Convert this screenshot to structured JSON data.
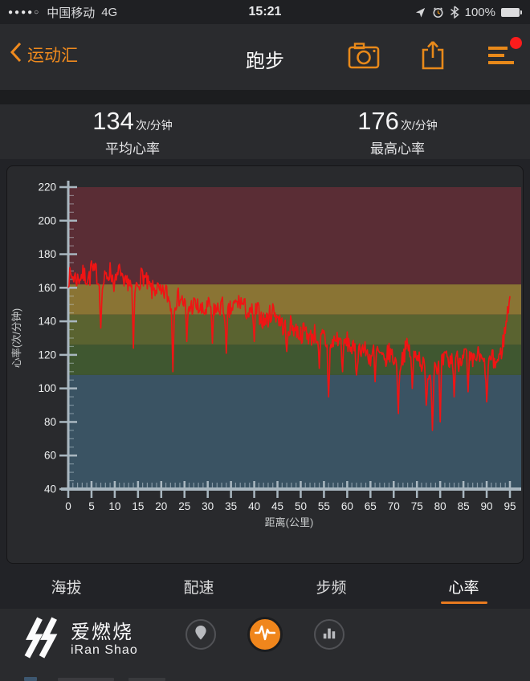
{
  "status_bar": {
    "signal_dots": "●●●●○",
    "carrier": "中国移动",
    "network": "4G",
    "time": "15:21",
    "battery_percent": "100%"
  },
  "nav": {
    "back_label": "运动汇",
    "title": "跑步"
  },
  "stats": {
    "avg": {
      "value": "134",
      "unit": "次/分钟",
      "label": "平均心率"
    },
    "max": {
      "value": "176",
      "unit": "次/分钟",
      "label": "最高心率"
    }
  },
  "chart_data": {
    "type": "line",
    "xlabel": "距离(公里)",
    "ylabel": "心率(次/分钟)",
    "xlim": [
      0,
      95
    ],
    "ylim": [
      40,
      220
    ],
    "x_ticks": [
      0,
      5,
      10,
      15,
      20,
      25,
      30,
      35,
      40,
      45,
      50,
      55,
      60,
      65,
      70,
      75,
      80,
      85,
      90,
      95
    ],
    "y_ticks": [
      40,
      60,
      80,
      100,
      120,
      140,
      160,
      180,
      200,
      220
    ],
    "line_color": "#f01414",
    "axis_color": "#a9b7c0",
    "tick_label_color": "#eceeef",
    "axis_title_color": "#c9cccd",
    "legend": "none",
    "grid": false,
    "zones": [
      {
        "from": 162,
        "to": 220,
        "color": "#5a2d35"
      },
      {
        "from": 144,
        "to": 162,
        "color": "#8a7434"
      },
      {
        "from": 126,
        "to": 144,
        "color": "#5a6330"
      },
      {
        "from": 108,
        "to": 126,
        "color": "#3f5730"
      },
      {
        "from": 40,
        "to": 108,
        "color": "#3a5363"
      }
    ],
    "series": [
      {
        "name": "心率",
        "x_step_km": 1,
        "values": [
          166,
          167,
          165,
          168,
          166,
          167,
          170,
          158,
          166,
          170,
          162,
          168,
          160,
          165,
          155,
          163,
          168,
          162,
          158,
          160,
          155,
          158,
          150,
          152,
          155,
          150,
          148,
          150,
          148,
          145,
          148,
          150,
          146,
          150,
          143,
          147,
          150,
          152,
          148,
          143,
          148,
          145,
          140,
          142,
          147,
          143,
          138,
          135,
          138,
          135,
          132,
          135,
          130,
          133,
          128,
          132,
          120,
          128,
          130,
          126,
          128,
          124,
          120,
          125,
          122,
          118,
          124,
          120,
          115,
          122,
          118,
          112,
          120,
          125,
          118,
          122,
          115,
          110,
          108,
          115,
          112,
          118,
          115,
          120,
          116,
          122,
          118,
          115,
          120,
          116,
          112,
          118,
          115,
          120,
          135,
          155
        ]
      }
    ],
    "spikes": [
      [
        5,
        176
      ],
      [
        7,
        136
      ],
      [
        11,
        174
      ],
      [
        14,
        124
      ],
      [
        22.5,
        110
      ],
      [
        25.5,
        128
      ],
      [
        31,
        127
      ],
      [
        34,
        121
      ],
      [
        40,
        128
      ],
      [
        47,
        122
      ],
      [
        54,
        112
      ],
      [
        56,
        95
      ],
      [
        59,
        110
      ],
      [
        62,
        108
      ],
      [
        66,
        104
      ],
      [
        71,
        85
      ],
      [
        74,
        100
      ],
      [
        77,
        90
      ],
      [
        78.3,
        75
      ],
      [
        80,
        80
      ],
      [
        83,
        95
      ],
      [
        86,
        98
      ],
      [
        90,
        92
      ],
      [
        95,
        155
      ]
    ],
    "noise_amplitude": 6
  },
  "tabs": [
    {
      "label": "海拔",
      "active": false
    },
    {
      "label": "配速",
      "active": false
    },
    {
      "label": "步频",
      "active": false
    },
    {
      "label": "心率",
      "active": true
    }
  ],
  "footer": {
    "brand_cn": "爱燃烧",
    "brand_en": "iRan Shao"
  },
  "theme": {
    "accent_orange": "#ef8a1e",
    "notification_red": "#fb1c1c",
    "panel_bg": "#292a2d",
    "page_bg": "#222327"
  }
}
